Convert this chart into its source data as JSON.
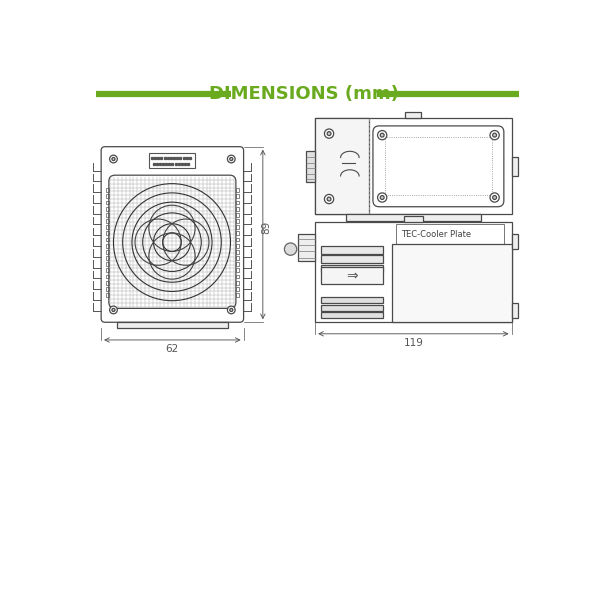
{
  "title": "DIMENSIONS (mm)",
  "title_color": "#6aaa1e",
  "title_fontsize": 13,
  "bg_color": "#ffffff",
  "line_color": "#4a4a4a",
  "line_width": 0.8,
  "dim_line_color": "#5a5a5a",
  "dim_62": "62",
  "dim_89": "89",
  "dim_119": "119",
  "tec_label": "TEC-Cooler Plate"
}
